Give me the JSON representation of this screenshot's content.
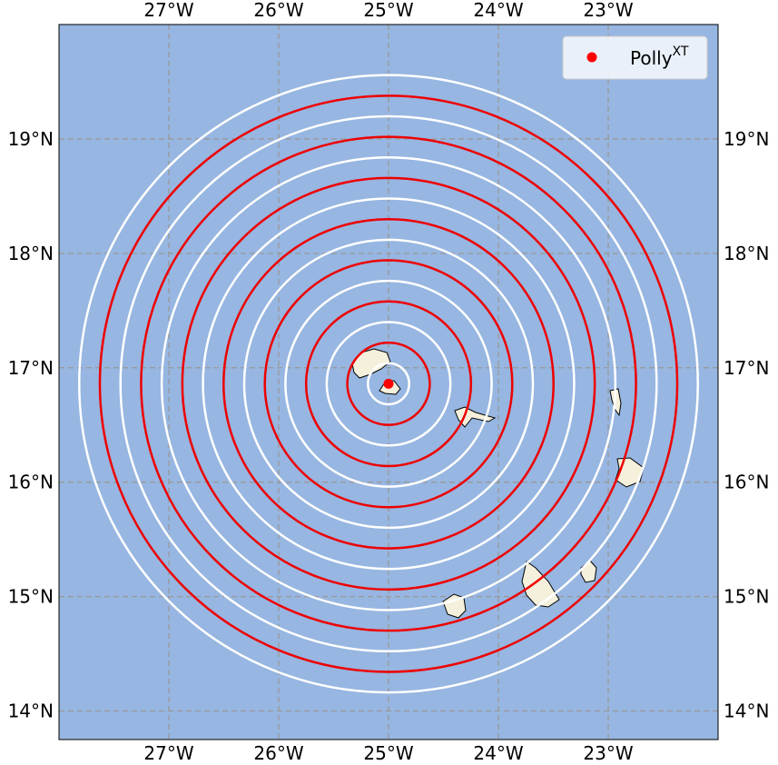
{
  "chart_data": {
    "type": "map",
    "xlim": [
      -28.0,
      -22.0
    ],
    "ylim": [
      13.75,
      20.0
    ],
    "xticks": [
      {
        "value": -27,
        "label": "27°W"
      },
      {
        "value": -26,
        "label": "26°W"
      },
      {
        "value": -25,
        "label": "25°W"
      },
      {
        "value": -24,
        "label": "24°W"
      },
      {
        "value": -23,
        "label": "23°W"
      }
    ],
    "yticks": [
      {
        "value": 14,
        "label": "14°N"
      },
      {
        "value": 15,
        "label": "15°N"
      },
      {
        "value": 16,
        "label": "16°N"
      },
      {
        "value": 17,
        "label": "17°N"
      },
      {
        "value": 18,
        "label": "18°N"
      },
      {
        "value": 19,
        "label": "19°N"
      }
    ],
    "grid": true,
    "series": [
      {
        "name": "Polly",
        "name_sup": "XT",
        "color": "#ff0000",
        "x": [
          -25.0
        ],
        "y": [
          16.86
        ]
      }
    ],
    "rings": {
      "center": [
        -25.0,
        16.86
      ],
      "radii_km": [
        20,
        40,
        60,
        80,
        100,
        120,
        140,
        160,
        180,
        200,
        220,
        240,
        260,
        280,
        300
      ],
      "colors": [
        "#ffffff",
        "#ee0000",
        "#ffffff",
        "#ee0000",
        "#ffffff",
        "#ee0000",
        "#ffffff",
        "#ee0000",
        "#ffffff",
        "#ee0000",
        "#ffffff",
        "#ee0000",
        "#ffffff",
        "#ee0000",
        "#ffffff"
      ]
    },
    "legend": "upper right"
  }
}
